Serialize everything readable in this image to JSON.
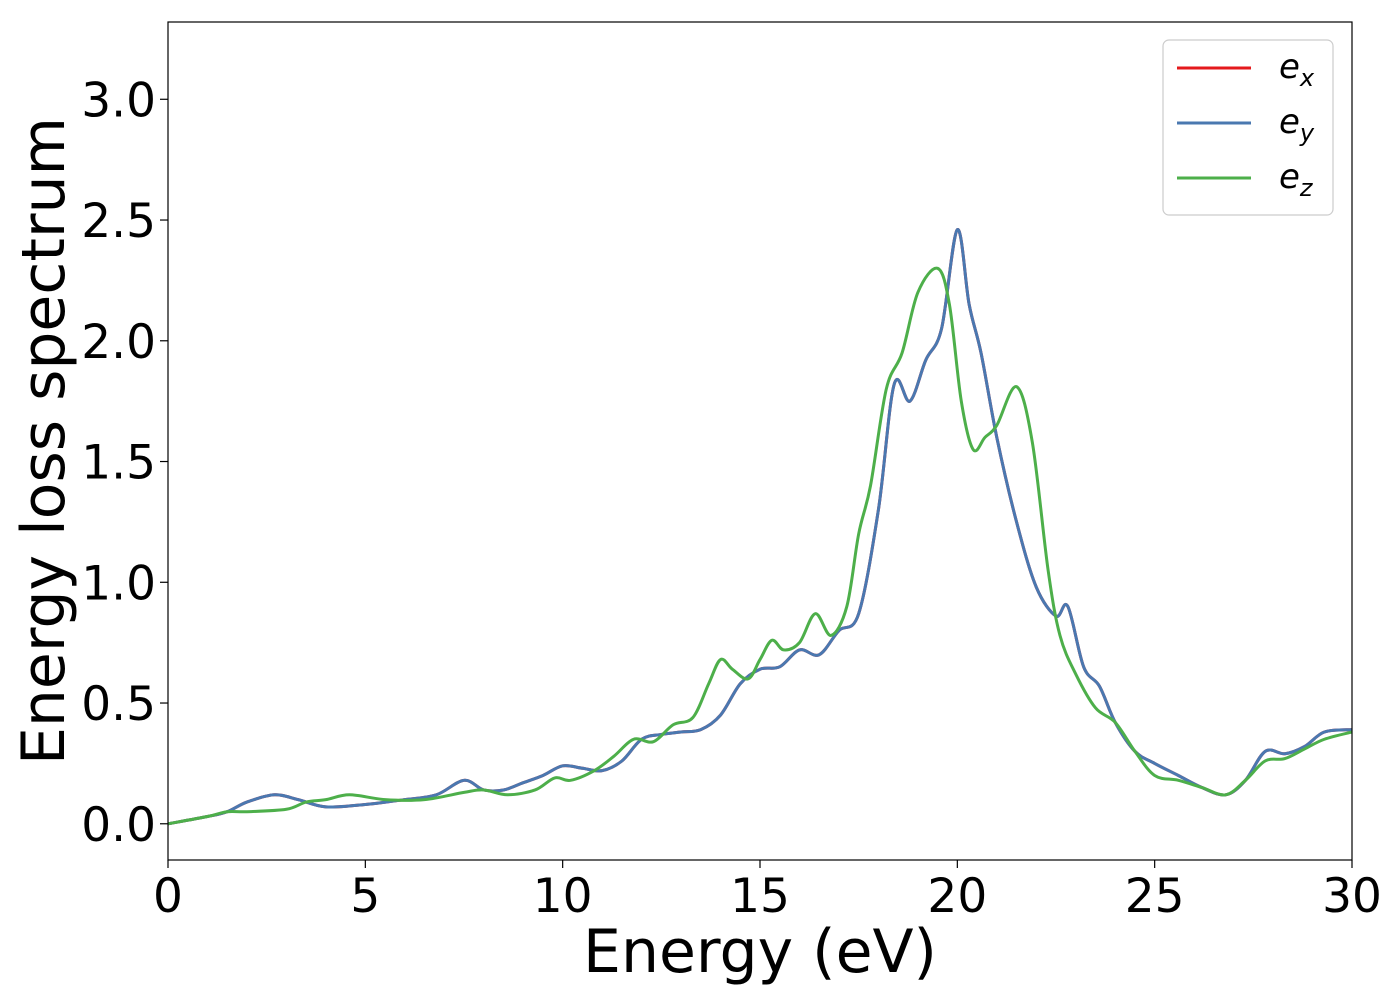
{
  "chart_data": {
    "type": "line",
    "xlabel": "Energy (eV)",
    "ylabel": "Energy loss spectrum",
    "xlim": [
      0,
      30
    ],
    "ylim": [
      -0.15,
      3.32
    ],
    "xticks": [
      0,
      5,
      10,
      15,
      20,
      25,
      30
    ],
    "xtick_labels": [
      "0",
      "5",
      "10",
      "15",
      "20",
      "25",
      "30"
    ],
    "yticks": [
      0.0,
      0.5,
      1.0,
      1.5,
      2.0,
      2.5,
      3.0
    ],
    "ytick_labels": [
      "0.0",
      "0.5",
      "1.0",
      "1.5",
      "2.0",
      "2.5",
      "3.0"
    ],
    "grid": false,
    "legend_position": "top-right",
    "series": [
      {
        "name": "e_x",
        "legend_base": "e",
        "legend_sub": "x",
        "color": "#e41a1c",
        "x": [
          0,
          1,
          1.5,
          2,
          2.7,
          3.3,
          4,
          5,
          6,
          6.8,
          7.5,
          8,
          8.5,
          9,
          9.5,
          10,
          10.5,
          11,
          11.5,
          12,
          12.5,
          13,
          13.5,
          14,
          14.5,
          15,
          15.5,
          16,
          16.5,
          17,
          17.5,
          18,
          18.4,
          18.8,
          19.2,
          19.6,
          20,
          20.3,
          20.6,
          21,
          21.5,
          22,
          22.5,
          22.8,
          23.2,
          23.6,
          24,
          24.5,
          25,
          25.6,
          26.2,
          26.8,
          27.3,
          27.8,
          28.3,
          28.8,
          29.3,
          30
        ],
        "y": [
          0.0,
          0.03,
          0.05,
          0.09,
          0.12,
          0.1,
          0.07,
          0.08,
          0.1,
          0.12,
          0.18,
          0.14,
          0.14,
          0.17,
          0.2,
          0.24,
          0.23,
          0.22,
          0.26,
          0.35,
          0.37,
          0.38,
          0.39,
          0.45,
          0.58,
          0.64,
          0.65,
          0.72,
          0.7,
          0.8,
          0.87,
          1.3,
          1.82,
          1.75,
          1.92,
          2.05,
          2.46,
          2.15,
          1.95,
          1.6,
          1.25,
          0.98,
          0.86,
          0.9,
          0.65,
          0.57,
          0.42,
          0.3,
          0.25,
          0.2,
          0.15,
          0.12,
          0.18,
          0.3,
          0.29,
          0.32,
          0.38,
          0.39
        ]
      },
      {
        "name": "e_y",
        "legend_base": "e",
        "legend_sub": "y",
        "color": "#4a78b0",
        "x": [
          0,
          1,
          1.5,
          2,
          2.7,
          3.3,
          4,
          5,
          6,
          6.8,
          7.5,
          8,
          8.5,
          9,
          9.5,
          10,
          10.5,
          11,
          11.5,
          12,
          12.5,
          13,
          13.5,
          14,
          14.5,
          15,
          15.5,
          16,
          16.5,
          17,
          17.5,
          18,
          18.4,
          18.8,
          19.2,
          19.6,
          20,
          20.3,
          20.6,
          21,
          21.5,
          22,
          22.5,
          22.8,
          23.2,
          23.6,
          24,
          24.5,
          25,
          25.6,
          26.2,
          26.8,
          27.3,
          27.8,
          28.3,
          28.8,
          29.3,
          30
        ],
        "y": [
          0.0,
          0.03,
          0.05,
          0.09,
          0.12,
          0.1,
          0.07,
          0.08,
          0.1,
          0.12,
          0.18,
          0.14,
          0.14,
          0.17,
          0.2,
          0.24,
          0.23,
          0.22,
          0.26,
          0.35,
          0.37,
          0.38,
          0.39,
          0.45,
          0.58,
          0.64,
          0.65,
          0.72,
          0.7,
          0.8,
          0.87,
          1.3,
          1.82,
          1.75,
          1.92,
          2.05,
          2.46,
          2.15,
          1.95,
          1.6,
          1.25,
          0.98,
          0.86,
          0.9,
          0.65,
          0.57,
          0.42,
          0.3,
          0.25,
          0.2,
          0.15,
          0.12,
          0.18,
          0.3,
          0.29,
          0.32,
          0.38,
          0.39
        ]
      },
      {
        "name": "e_z",
        "legend_base": "e",
        "legend_sub": "z",
        "color": "#4daf4a",
        "x": [
          0,
          1,
          1.5,
          2,
          3,
          3.5,
          4,
          4.6,
          5.5,
          6.5,
          7.5,
          8,
          8.6,
          9.3,
          9.8,
          10.2,
          10.8,
          11.3,
          11.8,
          12.3,
          12.8,
          13.3,
          13.7,
          14,
          14.3,
          14.7,
          15,
          15.3,
          15.6,
          16,
          16.4,
          16.8,
          17.2,
          17.5,
          17.8,
          18.2,
          18.6,
          19,
          19.5,
          19.8,
          20.1,
          20.4,
          20.7,
          21,
          21.5,
          21.9,
          22.3,
          22.6,
          23,
          23.5,
          24,
          24.5,
          25,
          25.6,
          26.2,
          26.8,
          27.3,
          27.8,
          28.3,
          28.8,
          29.3,
          30
        ],
        "y": [
          0.0,
          0.03,
          0.05,
          0.05,
          0.06,
          0.09,
          0.1,
          0.12,
          0.1,
          0.1,
          0.13,
          0.14,
          0.12,
          0.14,
          0.19,
          0.18,
          0.22,
          0.28,
          0.35,
          0.34,
          0.41,
          0.44,
          0.58,
          0.68,
          0.64,
          0.6,
          0.68,
          0.76,
          0.72,
          0.75,
          0.87,
          0.78,
          0.9,
          1.2,
          1.4,
          1.8,
          1.95,
          2.2,
          2.3,
          2.15,
          1.75,
          1.55,
          1.6,
          1.65,
          1.81,
          1.58,
          1.05,
          0.78,
          0.62,
          0.48,
          0.42,
          0.3,
          0.2,
          0.18,
          0.15,
          0.12,
          0.18,
          0.26,
          0.27,
          0.31,
          0.35,
          0.38
        ]
      }
    ]
  }
}
